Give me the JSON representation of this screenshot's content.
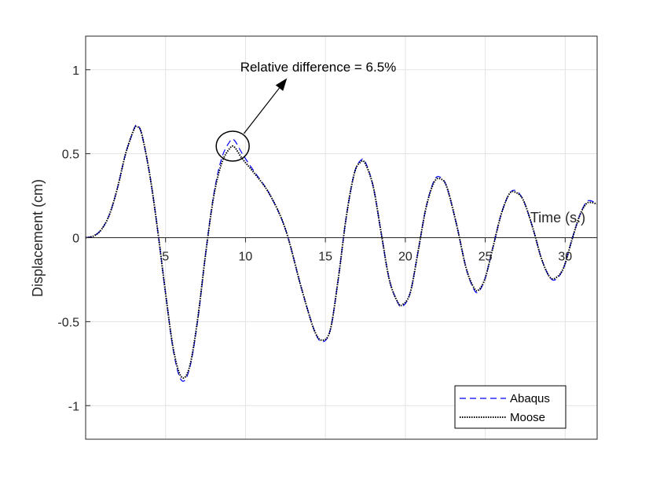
{
  "chart_data": {
    "type": "line",
    "title": "",
    "xlabel": "Time (s.)",
    "ylabel": "Displacement (cm)",
    "xlim": [
      0,
      32
    ],
    "ylim": [
      -1.2,
      1.2
    ],
    "grid": true,
    "x_ticks": [
      5,
      10,
      15,
      20,
      25,
      30
    ],
    "x_tick_labels": [
      "5",
      "10",
      "15",
      "20",
      "25",
      "30"
    ],
    "y_ticks": [
      -1,
      -0.5,
      0,
      0.5,
      1
    ],
    "y_tick_labels": [
      "-1",
      "-0.5",
      "0",
      "0.5",
      "1"
    ],
    "legend": {
      "position": "bottom-right",
      "entries": [
        "Abaqus",
        "Moose"
      ]
    },
    "annotation": {
      "text": "Relative difference = 6.5%",
      "circle_center": [
        9.2,
        0.545
      ],
      "arrow_from": [
        9.9,
        0.62
      ],
      "arrow_to": [
        12.6,
        0.95
      ]
    },
    "series": [
      {
        "name": "Abaqus",
        "color": "#0000ff",
        "line_style": "dashed",
        "points": [
          [
            0,
            0
          ],
          [
            0.5,
            0.01
          ],
          [
            1,
            0.05
          ],
          [
            1.5,
            0.14
          ],
          [
            2,
            0.3
          ],
          [
            2.5,
            0.5
          ],
          [
            3,
            0.64
          ],
          [
            3.2,
            0.67
          ],
          [
            3.5,
            0.62
          ],
          [
            4,
            0.38
          ],
          [
            4.5,
            0.05
          ],
          [
            5,
            -0.33
          ],
          [
            5.5,
            -0.68
          ],
          [
            6,
            -0.85
          ],
          [
            6.5,
            -0.78
          ],
          [
            7,
            -0.5
          ],
          [
            7.5,
            -0.1
          ],
          [
            8,
            0.25
          ],
          [
            8.5,
            0.47
          ],
          [
            9,
            0.57
          ],
          [
            9.3,
            0.58
          ],
          [
            9.8,
            0.5
          ],
          [
            10.5,
            0.4
          ],
          [
            11.5,
            0.26
          ],
          [
            12.5,
            0.05
          ],
          [
            13.5,
            -0.3
          ],
          [
            14.3,
            -0.55
          ],
          [
            14.8,
            -0.62
          ],
          [
            15.3,
            -0.55
          ],
          [
            15.8,
            -0.25
          ],
          [
            16.3,
            0.12
          ],
          [
            16.8,
            0.38
          ],
          [
            17.2,
            0.46
          ],
          [
            17.5,
            0.45
          ],
          [
            18,
            0.3
          ],
          [
            18.5,
            0.02
          ],
          [
            19,
            -0.25
          ],
          [
            19.5,
            -0.38
          ],
          [
            19.8,
            -0.41
          ],
          [
            20.3,
            -0.33
          ],
          [
            20.8,
            -0.08
          ],
          [
            21.3,
            0.18
          ],
          [
            21.8,
            0.34
          ],
          [
            22.2,
            0.36
          ],
          [
            22.6,
            0.3
          ],
          [
            23.2,
            0.08
          ],
          [
            23.8,
            -0.18
          ],
          [
            24.3,
            -0.31
          ],
          [
            24.6,
            -0.32
          ],
          [
            25,
            -0.24
          ],
          [
            25.5,
            -0.05
          ],
          [
            26,
            0.14
          ],
          [
            26.5,
            0.26
          ],
          [
            26.9,
            0.28
          ],
          [
            27.4,
            0.22
          ],
          [
            28,
            0.05
          ],
          [
            28.5,
            -0.12
          ],
          [
            29,
            -0.23
          ],
          [
            29.4,
            -0.25
          ],
          [
            29.9,
            -0.18
          ],
          [
            30.4,
            -0.02
          ],
          [
            30.9,
            0.13
          ],
          [
            31.3,
            0.21
          ],
          [
            31.6,
            0.22
          ],
          [
            32,
            0.2
          ]
        ]
      },
      {
        "name": "Moose",
        "color": "#000000",
        "line_style": "dotted",
        "points": [
          [
            0,
            0
          ],
          [
            0.5,
            0.01
          ],
          [
            1,
            0.05
          ],
          [
            1.5,
            0.14
          ],
          [
            2,
            0.3
          ],
          [
            2.5,
            0.5
          ],
          [
            3,
            0.64
          ],
          [
            3.2,
            0.66
          ],
          [
            3.5,
            0.62
          ],
          [
            4,
            0.38
          ],
          [
            4.5,
            0.05
          ],
          [
            5,
            -0.33
          ],
          [
            5.5,
            -0.67
          ],
          [
            6,
            -0.83
          ],
          [
            6.5,
            -0.77
          ],
          [
            7,
            -0.49
          ],
          [
            7.5,
            -0.1
          ],
          [
            8,
            0.24
          ],
          [
            8.5,
            0.44
          ],
          [
            9,
            0.53
          ],
          [
            9.3,
            0.54
          ],
          [
            9.8,
            0.47
          ],
          [
            10.5,
            0.39
          ],
          [
            11.5,
            0.26
          ],
          [
            12.5,
            0.05
          ],
          [
            13.5,
            -0.3
          ],
          [
            14.3,
            -0.55
          ],
          [
            14.8,
            -0.61
          ],
          [
            15.3,
            -0.55
          ],
          [
            15.8,
            -0.25
          ],
          [
            16.3,
            0.12
          ],
          [
            16.8,
            0.38
          ],
          [
            17.2,
            0.45
          ],
          [
            17.5,
            0.44
          ],
          [
            18,
            0.3
          ],
          [
            18.5,
            0.02
          ],
          [
            19,
            -0.25
          ],
          [
            19.5,
            -0.38
          ],
          [
            19.8,
            -0.4
          ],
          [
            20.3,
            -0.33
          ],
          [
            20.8,
            -0.08
          ],
          [
            21.3,
            0.18
          ],
          [
            21.8,
            0.33
          ],
          [
            22.2,
            0.35
          ],
          [
            22.6,
            0.3
          ],
          [
            23.2,
            0.08
          ],
          [
            23.8,
            -0.18
          ],
          [
            24.3,
            -0.3
          ],
          [
            24.6,
            -0.31
          ],
          [
            25,
            -0.24
          ],
          [
            25.5,
            -0.05
          ],
          [
            26,
            0.14
          ],
          [
            26.5,
            0.26
          ],
          [
            26.9,
            0.27
          ],
          [
            27.4,
            0.22
          ],
          [
            28,
            0.05
          ],
          [
            28.5,
            -0.12
          ],
          [
            29,
            -0.23
          ],
          [
            29.4,
            -0.24
          ],
          [
            29.9,
            -0.18
          ],
          [
            30.4,
            -0.02
          ],
          [
            30.9,
            0.13
          ],
          [
            31.3,
            0.2
          ],
          [
            31.6,
            0.21
          ],
          [
            32,
            0.2
          ]
        ]
      }
    ]
  }
}
